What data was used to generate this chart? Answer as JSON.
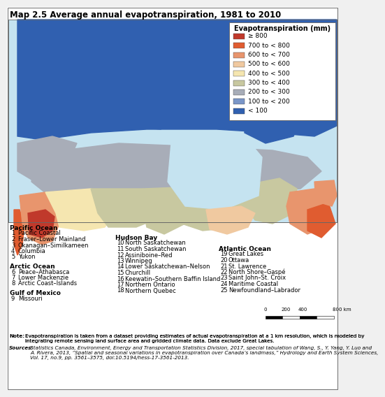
{
  "title": "Map 2.5 Average annual evapotranspiration, 1981 to 2010",
  "legend_title": "Evapotranspiration (mm)",
  "legend_labels": [
    "≥ 800",
    "700 to < 800",
    "600 to < 700",
    "500 to < 600",
    "400 to < 500",
    "300 to < 400",
    "200 to < 300",
    "100 to < 200",
    "< 100"
  ],
  "legend_colors": [
    "#c0392b",
    "#e05c30",
    "#e8956d",
    "#f0c9a0",
    "#f5e6b0",
    "#c8c8a0",
    "#a8adb8",
    "#7a96c8",
    "#3060b0"
  ],
  "ocean_color": "#c8e4f0",
  "map_border_color": "#888888",
  "bg_color": "#ffffff",
  "outer_bg": "#f0f0f0",
  "pacific_ocean_header": "Pacific Ocean",
  "pacific_items_num": [
    "1",
    "2",
    "3",
    "4",
    "5"
  ],
  "pacific_items_txt": [
    "Pacific Coastal",
    "Fraser–Lower Mainland",
    "Okanagan–Similkameen",
    "Columbia",
    "Yukon"
  ],
  "arctic_ocean_header": "Arctic Ocean",
  "arctic_items_num": [
    "6",
    "7",
    "8"
  ],
  "arctic_items_txt": [
    "Peace–Athabasca",
    "Lower Mackenzie",
    "Arctic Coast–Islands"
  ],
  "gulf_header": "Gulf of Mexico",
  "gulf_items_num": [
    "9"
  ],
  "gulf_items_txt": [
    "Missouri"
  ],
  "hudson_header": "Hudson Bay",
  "hudson_items_num": [
    "10",
    "11",
    "12",
    "13",
    "14",
    "15",
    "16",
    "17",
    "18"
  ],
  "hudson_items_txt": [
    "North Saskatchewan",
    "South Saskatchewan",
    "Assiniboine–Red",
    "Winnipeg",
    "Lower Saskatchewan–Nelson",
    "Churchill",
    "Keewatin–Southern Baffin Island",
    "Northern Ontario",
    "Northern Quebec"
  ],
  "atlantic_header": "Atlantic Ocean",
  "atlantic_items_num": [
    "19",
    "20",
    "21",
    "22",
    "23",
    "24",
    "25"
  ],
  "atlantic_items_txt": [
    "Great Lakes",
    "Ottawa",
    "St. Lawrence",
    "North Shore–Gaspé",
    "Saint John–St. Croix",
    "Maritime Coastal",
    "Newfoundland–Labrador"
  ],
  "note_label": "Note:",
  "note_text": "Evapotranspiration is taken from a dataset providing estimates of actual evapotranspiration at a 1 km resolution, which is modeled by integrating remote sensing land surface area and gridded climate data. Data exclude Great Lakes.",
  "sources_label": "Sources:",
  "sources_text": "Statistics Canada, Environment, Energy and Transportation Statistics Division, 2017, special tabulation of Wang, S., Y. Yang, Y. Luo and A. Rivera, 2013, “Spatial and seasonal variations in evapotranspiration over Canada’s landmass,” Hydrology and Earth System Sciences, Vol. 17, no.9, pp. 3561–3575, doi:10.5194/hess-17-3561-2013.",
  "scale_ticks": [
    "0",
    "200 400",
    "800 km"
  ],
  "title_fontsize": 8.5,
  "legend_title_fontsize": 7.0,
  "legend_fontsize": 6.5,
  "text_header_fontsize": 6.5,
  "text_item_fontsize": 6.0,
  "note_fontsize": 5.2
}
